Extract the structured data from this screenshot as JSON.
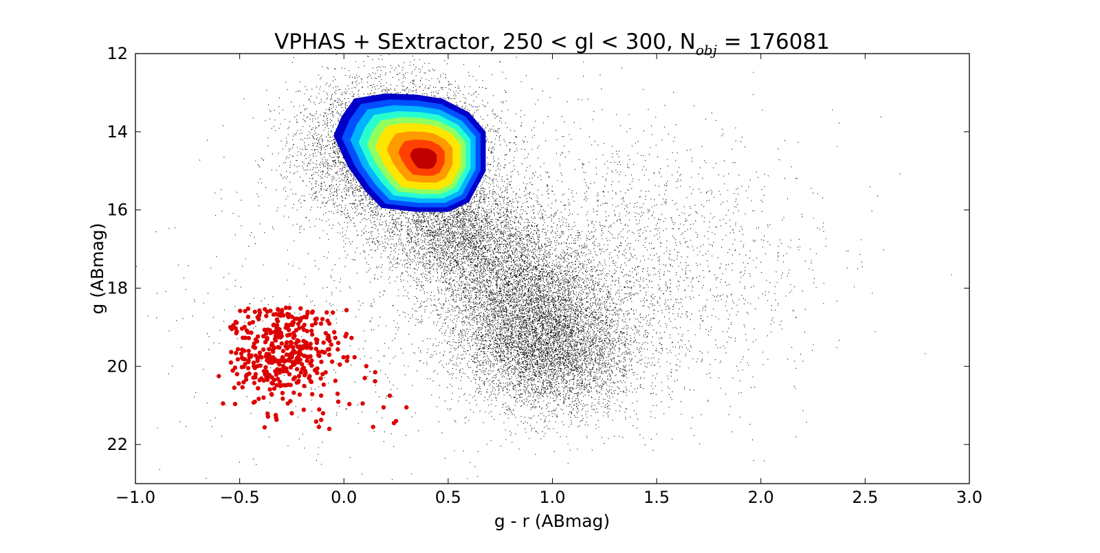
{
  "chart_data": {
    "type": "scatter",
    "title": "VPHAS + SExtractor, 250 < gl < 300, N",
    "title_subscript": "obj",
    "title_suffix": " = 176081",
    "xlabel": "g - r (ABmag)",
    "ylabel": "g (ABmag)",
    "xlim": [
      -1.0,
      3.0
    ],
    "ylim": [
      23,
      12
    ],
    "y_inverted": true,
    "grid": false,
    "x_ticks": [
      -1.0,
      -0.5,
      0.0,
      0.5,
      1.0,
      1.5,
      2.0,
      2.5,
      3.0
    ],
    "x_tick_labels": [
      "−1.0",
      "−0.5",
      "0.0",
      "0.5",
      "1.0",
      "1.5",
      "2.0",
      "2.5",
      "3.0"
    ],
    "y_ticks": [
      12,
      14,
      16,
      18,
      20,
      22
    ],
    "y_tick_labels": [
      "12",
      "14",
      "16",
      "18",
      "20",
      "22"
    ],
    "colors": {
      "points": "#000000",
      "highlight": "#dd0000",
      "contour_levels": [
        "#0000c8",
        "#0050ff",
        "#00b4ff",
        "#28ffd0",
        "#90ff60",
        "#ffe600",
        "#ff9a00",
        "#ff4000",
        "#c00000"
      ]
    },
    "density_contours": {
      "center": [
        0.33,
        14.55
      ],
      "levels": 9,
      "outer_boundary": [
        [
          -0.01,
          13.6
        ],
        [
          0.05,
          13.15
        ],
        [
          0.2,
          13.02
        ],
        [
          0.35,
          13.05
        ],
        [
          0.47,
          13.15
        ],
        [
          0.6,
          13.5
        ],
        [
          0.68,
          14.0
        ],
        [
          0.68,
          15.0
        ],
        [
          0.6,
          15.8
        ],
        [
          0.5,
          16.05
        ],
        [
          0.35,
          16.05
        ],
        [
          0.18,
          15.95
        ],
        [
          0.1,
          15.5
        ],
        [
          0.02,
          14.9
        ],
        [
          -0.05,
          14.1
        ]
      ]
    },
    "series": [
      {
        "values_description_none": true,
        "kind": "background-stars",
        "clusters": [
          {
            "center": [
              0.25,
              14.5
            ],
            "spread": [
              0.22,
              0.9
            ],
            "count": 9000
          },
          {
            "center": [
              0.55,
              16.6
            ],
            "spread": [
              0.18,
              0.7
            ],
            "count": 3000
          },
          {
            "center": [
              0.85,
              18.2
            ],
            "spread": [
              0.2,
              0.9
            ],
            "count": 4000
          },
          {
            "center": [
              1.0,
              19.6
            ],
            "spread": [
              0.2,
              0.8
            ],
            "count": 4500
          },
          {
            "center": [
              1.3,
              17.5
            ],
            "spread": [
              0.45,
              1.8
            ],
            "count": 2500
          },
          {
            "center": [
              0.1,
              18.5
            ],
            "spread": [
              0.5,
              2.2
            ],
            "count": 600
          }
        ]
      },
      {
        "kind": "highlighted-sources",
        "center": [
          -0.28,
          19.6
        ],
        "spread": [
          0.13,
          0.65
        ],
        "count": 420,
        "outliers": [
          [
            -0.58,
            20.95
          ],
          [
            -0.6,
            20.25
          ],
          [
            0.14,
            21.55
          ],
          [
            0.25,
            21.4
          ],
          [
            0.3,
            21.05
          ],
          [
            0.22,
            20.75
          ],
          [
            -0.12,
            21.55
          ],
          [
            -0.07,
            21.6
          ],
          [
            0.09,
            20.95
          ],
          [
            0.15,
            20.15
          ],
          [
            -0.25,
            21.2
          ],
          [
            0.1,
            20.3
          ],
          [
            -0.1,
            21.2
          ],
          [
            0.19,
            21.05
          ],
          [
            0.24,
            21.45
          ]
        ]
      }
    ]
  }
}
